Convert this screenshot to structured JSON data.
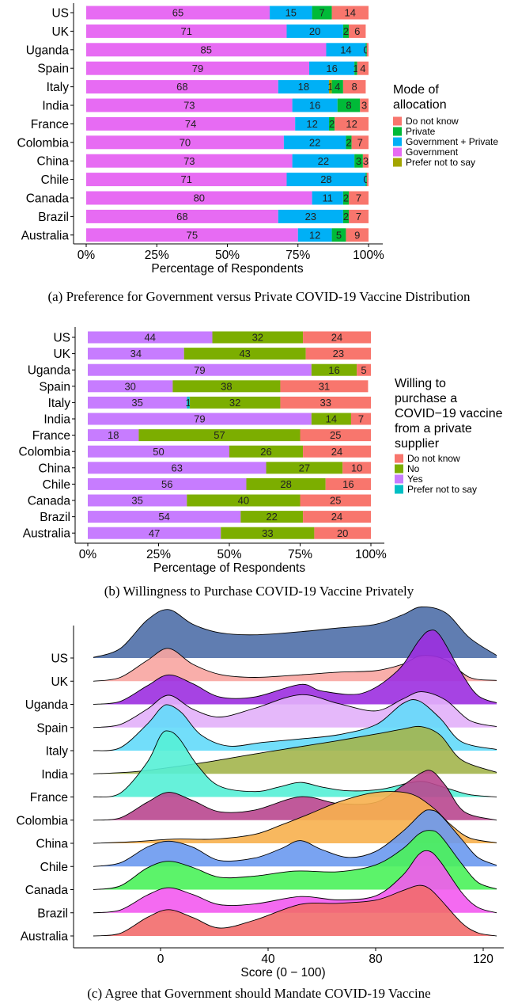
{
  "chart_data": [
    {
      "type": "bar",
      "orientation": "horizontal",
      "stacked": true,
      "caption": "(a) Preference for Government versus Private COVID-19 Vaccine Distribution",
      "xlabel": "Percentage of Respondents",
      "ylabel": "",
      "xlim": [
        0,
        100
      ],
      "xticks": [
        "0%",
        "25%",
        "50%",
        "75%",
        "100%"
      ],
      "legend": {
        "title": [
          "Mode of",
          "allocation"
        ],
        "position": "right",
        "entries": [
          {
            "label": "Do not know",
            "color": "#F8766D"
          },
          {
            "label": "Private",
            "color": "#00BA38"
          },
          {
            "label": "Government + Private",
            "color": "#00B0F6"
          },
          {
            "label": "Government",
            "color": "#E76BF3"
          },
          {
            "label": "Prefer not to say",
            "color": "#A3A500"
          }
        ]
      },
      "categories": [
        "US",
        "UK",
        "Uganda",
        "Spain",
        "Italy",
        "India",
        "France",
        "Colombia",
        "China",
        "Chile",
        "Canada",
        "Brazil",
        "Australia"
      ],
      "series": [
        {
          "name": "Government",
          "color": "#E76BF3",
          "values": [
            65,
            71,
            85,
            79,
            68,
            73,
            74,
            70,
            73,
            71,
            80,
            68,
            75
          ],
          "labels": [
            "65",
            "71",
            "85",
            "79",
            "68",
            "73",
            "74",
            "70",
            "73",
            "71",
            "80",
            "68",
            "75"
          ]
        },
        {
          "name": "Government + Private",
          "color": "#00B0F6",
          "values": [
            15,
            20,
            14,
            16,
            18,
            16,
            12,
            22,
            22,
            28,
            11,
            23,
            12
          ],
          "labels": [
            "15",
            "20",
            "14",
            "16",
            "18",
            "16",
            "12",
            "22",
            "22",
            "28",
            "11",
            "23",
            "12"
          ]
        },
        {
          "name": "Prefer not to say",
          "color": "#A3A500",
          "values": [
            0,
            0,
            0,
            0,
            1,
            0,
            0,
            0,
            0,
            0,
            0,
            0,
            0
          ],
          "labels": [
            "",
            "",
            "",
            "",
            "1",
            "",
            "",
            "",
            "",
            "",
            "",
            "",
            ""
          ]
        },
        {
          "name": "Private",
          "color": "#00BA38",
          "values": [
            7,
            2,
            0.4,
            1,
            4,
            8,
            2,
            2,
            3,
            0.4,
            2,
            2,
            5
          ],
          "labels": [
            "7",
            "2",
            "0",
            "1",
            "4",
            "8",
            "2",
            "2",
            "3",
            "0",
            "2",
            "2",
            "5"
          ]
        },
        {
          "name": "Do not know",
          "color": "#F8766D",
          "values": [
            14,
            6,
            0.6,
            4,
            8,
            3,
            12,
            7,
            3,
            0.6,
            7,
            7,
            9
          ],
          "labels": [
            "14",
            "6",
            "",
            "4",
            "8",
            "3",
            "12",
            "7",
            "3",
            "",
            "7",
            "7",
            "9"
          ]
        }
      ]
    },
    {
      "type": "bar",
      "orientation": "horizontal",
      "stacked": true,
      "caption": "(b) Willingness to Purchase COVID-19 Vaccine Privately",
      "xlabel": "Percentage of Respondents",
      "ylabel": "",
      "xlim": [
        0,
        100
      ],
      "xticks": [
        "0%",
        "25%",
        "50%",
        "75%",
        "100%"
      ],
      "legend": {
        "title": [
          "Willing to",
          "purchase a",
          "COVID−19 vaccine",
          "from a private",
          "supplier"
        ],
        "position": "right",
        "entries": [
          {
            "label": "Do not know",
            "color": "#F8766D"
          },
          {
            "label": "No",
            "color": "#7CAE00"
          },
          {
            "label": "Yes",
            "color": "#C77CFF"
          },
          {
            "label": "Prefer not to say",
            "color": "#00BFC4"
          }
        ]
      },
      "categories": [
        "US",
        "UK",
        "Uganda",
        "Spain",
        "Italy",
        "India",
        "France",
        "Colombia",
        "China",
        "Chile",
        "Canada",
        "Brazil",
        "Australia"
      ],
      "series": [
        {
          "name": "Yes",
          "color": "#C77CFF",
          "values": [
            44,
            34,
            79,
            30,
            35,
            79,
            18,
            50,
            63,
            56,
            35,
            54,
            47
          ],
          "labels": [
            "44",
            "34",
            "79",
            "30",
            "35",
            "79",
            "18",
            "50",
            "63",
            "56",
            "35",
            "54",
            "47"
          ]
        },
        {
          "name": "Prefer not to say",
          "color": "#00BFC4",
          "values": [
            0,
            0,
            0,
            0,
            1,
            0,
            0,
            0,
            0,
            0,
            0,
            0,
            0
          ],
          "labels": [
            "",
            "",
            "",
            "",
            "1",
            "",
            "",
            "",
            "",
            "",
            "",
            "",
            ""
          ]
        },
        {
          "name": "No",
          "color": "#7CAE00",
          "values": [
            32,
            43,
            16,
            38,
            32,
            14,
            57,
            26,
            27,
            28,
            40,
            22,
            33
          ],
          "labels": [
            "32",
            "43",
            "16",
            "38",
            "32",
            "14",
            "57",
            "26",
            "27",
            "28",
            "40",
            "22",
            "33"
          ]
        },
        {
          "name": "Do not know",
          "color": "#F8766D",
          "values": [
            24,
            23,
            5,
            31,
            33,
            7,
            25,
            24,
            10,
            16,
            25,
            24,
            20
          ],
          "labels": [
            "24",
            "23",
            "5",
            "31",
            "33",
            "7",
            "25",
            "24",
            "10",
            "16",
            "25",
            "24",
            "20"
          ]
        }
      ]
    },
    {
      "type": "ridgeline",
      "caption": "(c) Agree that Government should Mandate COVID-19 Vaccine",
      "xlabel": "Score (0 − 100)",
      "ylabel": "",
      "xlim": [
        -25,
        125
      ],
      "xticks": [
        0,
        40,
        80,
        120
      ],
      "categories": [
        "US",
        "UK",
        "Uganda",
        "Spain",
        "Italy",
        "India",
        "France",
        "Colombia",
        "China",
        "Chile",
        "Canada",
        "Brazil",
        "Australia"
      ],
      "series": [
        {
          "name": "US",
          "color": "#4F6FA8",
          "height": 1.75,
          "x": [
            -25,
            -15,
            -5,
            3,
            12,
            22,
            35,
            52,
            66,
            80,
            90,
            97,
            106,
            115,
            125
          ],
          "y": [
            0.01,
            0.18,
            0.72,
            0.92,
            0.64,
            0.48,
            0.44,
            0.5,
            0.57,
            0.64,
            0.82,
            0.97,
            0.86,
            0.38,
            0.05
          ]
        },
        {
          "name": "UK",
          "color": "#F8A5A1",
          "height": 1.25,
          "x": [
            -25,
            -15,
            -5,
            3,
            12,
            22,
            35,
            52,
            66,
            80,
            90,
            97,
            106,
            115,
            125
          ],
          "y": [
            0.0,
            0.1,
            0.55,
            0.87,
            0.45,
            0.18,
            0.1,
            0.17,
            0.24,
            0.28,
            0.45,
            0.68,
            0.57,
            0.1,
            0.02
          ]
        },
        {
          "name": "Uganda",
          "color": "#9C2FE0",
          "height": 2.45,
          "x": [
            -25,
            -15,
            -5,
            3,
            12,
            22,
            35,
            52,
            60,
            75,
            88,
            96,
            100,
            104,
            112,
            118,
            125
          ],
          "y": [
            0.0,
            0.04,
            0.25,
            0.4,
            0.28,
            0.1,
            0.1,
            0.27,
            0.18,
            0.15,
            0.45,
            0.86,
            1.0,
            0.93,
            0.42,
            0.12,
            0.02
          ]
        },
        {
          "name": "Spain",
          "color": "#E2B0FA",
          "height": 1.45,
          "x": [
            -25,
            -15,
            -5,
            3,
            12,
            22,
            35,
            52,
            66,
            80,
            90,
            97,
            106,
            115,
            125
          ],
          "y": [
            0.0,
            0.07,
            0.42,
            0.74,
            0.42,
            0.24,
            0.44,
            0.75,
            0.55,
            0.38,
            0.65,
            0.82,
            0.63,
            0.16,
            0.02
          ]
        },
        {
          "name": "Italy",
          "color": "#63DAFA",
          "height": 1.95,
          "x": [
            -25,
            -15,
            -5,
            0,
            3,
            8,
            15,
            25,
            38,
            52,
            66,
            80,
            90,
            96,
            104,
            112,
            125
          ],
          "y": [
            0.0,
            0.05,
            0.45,
            0.72,
            0.78,
            0.64,
            0.27,
            0.08,
            0.14,
            0.2,
            0.27,
            0.44,
            0.8,
            0.85,
            0.55,
            0.15,
            0.02
          ]
        },
        {
          "name": "India",
          "color": "#A3B54C",
          "height": 1.65,
          "x": [
            -25,
            -10,
            5,
            20,
            35,
            50,
            65,
            80,
            90,
            97,
            104,
            112,
            125
          ],
          "y": [
            0.0,
            0.04,
            0.14,
            0.26,
            0.4,
            0.53,
            0.66,
            0.8,
            0.9,
            0.95,
            0.78,
            0.28,
            0.03
          ]
        },
        {
          "name": "France",
          "color": "#55F0D6",
          "height": 2.55,
          "x": [
            -25,
            -15,
            -5,
            0,
            3,
            7,
            14,
            22,
            35,
            44,
            52,
            60,
            70,
            82,
            92,
            98,
            106,
            115,
            125
          ],
          "y": [
            0.0,
            0.05,
            0.45,
            0.8,
            0.86,
            0.76,
            0.4,
            0.14,
            0.07,
            0.13,
            0.19,
            0.13,
            0.08,
            0.1,
            0.18,
            0.2,
            0.12,
            0.03,
            0.0
          ]
        },
        {
          "name": "Colombia",
          "color": "#B9478F",
          "height": 1.85,
          "x": [
            -25,
            -15,
            -5,
            3,
            12,
            22,
            35,
            52,
            66,
            80,
            90,
            97,
            101,
            106,
            113,
            125
          ],
          "y": [
            0.0,
            0.04,
            0.32,
            0.5,
            0.35,
            0.15,
            0.18,
            0.42,
            0.3,
            0.32,
            0.62,
            0.85,
            0.88,
            0.62,
            0.15,
            0.0
          ]
        },
        {
          "name": "China",
          "color": "#F7B04E",
          "height": 1.75,
          "x": [
            -25,
            -10,
            5,
            20,
            35,
            45,
            55,
            66,
            78,
            88,
            95,
            102,
            108,
            115,
            125
          ],
          "y": [
            0.0,
            0.03,
            0.08,
            0.08,
            0.17,
            0.35,
            0.55,
            0.78,
            0.95,
            0.98,
            0.9,
            0.65,
            0.35,
            0.1,
            0.01
          ]
        },
        {
          "name": "Chile",
          "color": "#6A99F0",
          "height": 2.0,
          "x": [
            -25,
            -15,
            -5,
            3,
            12,
            22,
            35,
            45,
            52,
            60,
            70,
            80,
            90,
            97,
            100,
            104,
            112,
            118,
            125
          ],
          "y": [
            0.0,
            0.06,
            0.32,
            0.42,
            0.32,
            0.1,
            0.14,
            0.3,
            0.43,
            0.28,
            0.15,
            0.25,
            0.58,
            0.88,
            0.94,
            0.86,
            0.45,
            0.15,
            0.02
          ]
        },
        {
          "name": "Canada",
          "color": "#4AF25A",
          "height": 2.05,
          "x": [
            -25,
            -15,
            -5,
            3,
            12,
            22,
            35,
            50,
            66,
            80,
            90,
            96,
            100,
            104,
            112,
            118,
            125
          ],
          "y": [
            0.0,
            0.06,
            0.35,
            0.46,
            0.36,
            0.2,
            0.22,
            0.3,
            0.29,
            0.4,
            0.66,
            0.9,
            0.96,
            0.88,
            0.42,
            0.12,
            0.01
          ]
        },
        {
          "name": "Brazil",
          "color": "#F35AF0",
          "height": 2.25,
          "x": [
            -25,
            -15,
            -5,
            3,
            12,
            22,
            35,
            52,
            66,
            80,
            90,
            96,
            100,
            104,
            112,
            118,
            125
          ],
          "y": [
            0.0,
            0.04,
            0.26,
            0.37,
            0.27,
            0.12,
            0.13,
            0.24,
            0.19,
            0.25,
            0.55,
            0.86,
            0.91,
            0.76,
            0.3,
            0.08,
            0.0
          ]
        },
        {
          "name": "Australia",
          "color": "#F26B6B",
          "height": 1.75,
          "x": [
            -25,
            -15,
            -5,
            3,
            12,
            22,
            35,
            52,
            66,
            80,
            90,
            96,
            100,
            104,
            112,
            118,
            125
          ],
          "y": [
            0.0,
            0.05,
            0.35,
            0.5,
            0.35,
            0.15,
            0.3,
            0.6,
            0.62,
            0.68,
            0.86,
            0.96,
            0.9,
            0.7,
            0.25,
            0.06,
            0.0
          ]
        }
      ]
    }
  ]
}
